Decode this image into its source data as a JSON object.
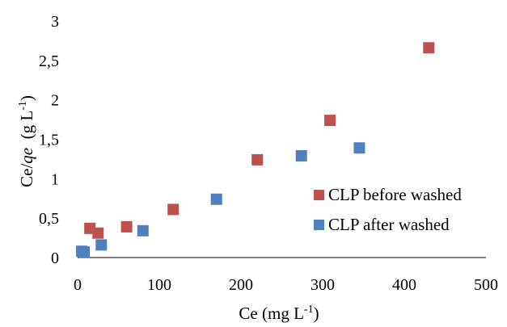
{
  "chart_data": {
    "type": "scatter",
    "xlabel": {
      "base": "Ce (mg L",
      "sup": "-1",
      "end": ")"
    },
    "ylabel": {
      "p1": "Ce/",
      "p2": "qe",
      "p3": "  (g L",
      "sup": "-1",
      "end": ")"
    },
    "xlim": [
      0,
      500
    ],
    "ylim": [
      0,
      3
    ],
    "xticks": [
      0,
      100,
      200,
      300,
      400,
      500
    ],
    "yticks": [
      0,
      0.5,
      1,
      1.5,
      2,
      2.5,
      3
    ],
    "xtick_labels": [
      "0",
      "100",
      "200",
      "300",
      "400",
      "500"
    ],
    "ytick_labels": [
      "0",
      "0,5",
      "1",
      "1,5",
      "2",
      "2,5",
      "3"
    ],
    "grid": false,
    "legend_position": "right",
    "series": [
      {
        "name": "CLP before washed",
        "color": "#C0504D",
        "points": [
          {
            "x": 15,
            "y": 0.37
          },
          {
            "x": 25,
            "y": 0.31
          },
          {
            "x": 60,
            "y": 0.39
          },
          {
            "x": 117,
            "y": 0.61
          },
          {
            "x": 220,
            "y": 1.24
          },
          {
            "x": 309,
            "y": 1.74
          },
          {
            "x": 430,
            "y": 2.66
          }
        ]
      },
      {
        "name": "CLP after washed",
        "color": "#4F81BD",
        "points": [
          {
            "x": 5,
            "y": 0.08
          },
          {
            "x": 8,
            "y": 0.07
          },
          {
            "x": 29,
            "y": 0.16
          },
          {
            "x": 80,
            "y": 0.34
          },
          {
            "x": 170,
            "y": 0.74
          },
          {
            "x": 274,
            "y": 1.29
          },
          {
            "x": 345,
            "y": 1.39
          }
        ]
      }
    ]
  }
}
